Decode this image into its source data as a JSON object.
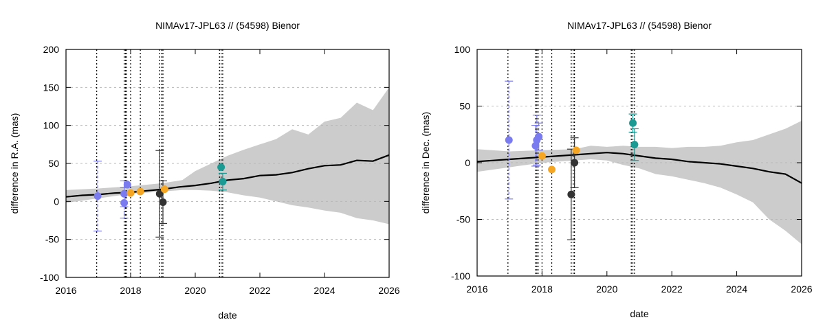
{
  "chart_data": [
    {
      "type": "line",
      "title": "NIMAv17-JPL63 // (54598) Bienor",
      "xlabel": "date",
      "ylabel": "difference in R.A. (mas)",
      "xlim": [
        2016,
        2026
      ],
      "ylim": [
        -100,
        200
      ],
      "x_ticks": [
        2016,
        2018,
        2020,
        2022,
        2024,
        2026
      ],
      "y_ticks": [
        -100,
        -50,
        0,
        50,
        100,
        150,
        200
      ],
      "x_tick_labels": [
        "2016",
        "2018",
        "2020",
        "2022",
        "2024",
        "2026"
      ],
      "y_tick_labels": [
        "-100",
        "-50",
        "0",
        "50",
        "100",
        "150",
        "200"
      ],
      "grid": true,
      "colors": {
        "band": "#cccccc",
        "line": "#000000",
        "blue": "#7b7bf0",
        "orange": "#f5a623",
        "black": "#333333",
        "teal": "#1a9a93"
      },
      "uncertainty_band": {
        "x": [
          2016,
          2017,
          2018,
          2019,
          2019.6,
          2020,
          2020.5,
          2021,
          2021.5,
          2022,
          2022.5,
          2023,
          2023.5,
          2024,
          2024.5,
          2025,
          2025.5,
          2026
        ],
        "upper": [
          15,
          17,
          20,
          24,
          28,
          40,
          50,
          60,
          68,
          75,
          82,
          95,
          88,
          105,
          110,
          130,
          120,
          150
        ],
        "lower": [
          -2,
          4,
          10,
          13,
          15,
          15,
          14,
          12,
          8,
          5,
          0,
          -5,
          -8,
          -12,
          -15,
          -22,
          -25,
          -30
        ]
      },
      "mean_line": {
        "x": [
          2016,
          2016.5,
          2017,
          2017.5,
          2018,
          2018.5,
          2019,
          2019.5,
          2020,
          2020.5,
          2021,
          2021.5,
          2022,
          2022.5,
          2023,
          2023.5,
          2024,
          2024.5,
          2025,
          2025.5,
          2026
        ],
        "y": [
          6,
          8,
          9,
          11,
          12,
          14,
          16,
          19,
          21,
          24,
          28,
          30,
          34,
          35,
          38,
          43,
          47,
          48,
          54,
          53,
          61
        ]
      },
      "vertical_lines": [
        2016.95,
        2017.8,
        2017.84,
        2017.88,
        2018.0,
        2018.3,
        2018.9,
        2018.96,
        2019.0,
        2020.75,
        2020.8,
        2020.85
      ],
      "points": [
        {
          "x": 2016.98,
          "y": 7,
          "err": 46,
          "color": "blue",
          "dashed": true
        },
        {
          "x": 2017.8,
          "y": 10,
          "err": 17,
          "color": "blue",
          "dashed": true
        },
        {
          "x": 2017.8,
          "y": -2,
          "err": 20,
          "color": "blue",
          "dashed": true
        },
        {
          "x": 2017.9,
          "y": 22,
          "err": 0,
          "color": "blue",
          "dashed": true
        },
        {
          "x": 2018.0,
          "y": 11,
          "err": 0,
          "color": "orange",
          "dashed": false
        },
        {
          "x": 2018.3,
          "y": 13,
          "err": 0,
          "color": "orange",
          "dashed": false
        },
        {
          "x": 2018.9,
          "y": 10,
          "err": 57,
          "color": "black",
          "dashed": false
        },
        {
          "x": 2019.0,
          "y": -1,
          "err": 28,
          "color": "black",
          "dashed": false
        },
        {
          "x": 2019.05,
          "y": 16,
          "err": 0,
          "color": "orange",
          "dashed": false
        },
        {
          "x": 2020.8,
          "y": 45,
          "err": 0,
          "color": "teal",
          "dashed": false
        },
        {
          "x": 2020.85,
          "y": 26,
          "err": 11,
          "color": "teal",
          "dashed": false
        }
      ]
    },
    {
      "type": "line",
      "title": "NIMAv17-JPL63 // (54598) Bienor",
      "xlabel": "date",
      "ylabel": "difference in Dec. (mas)",
      "xlim": [
        2016,
        2026
      ],
      "ylim": [
        -100,
        100
      ],
      "x_ticks": [
        2016,
        2018,
        2020,
        2022,
        2024,
        2026
      ],
      "y_ticks": [
        -100,
        -50,
        0,
        50,
        100
      ],
      "x_tick_labels": [
        "2016",
        "2018",
        "2020",
        "2022",
        "2024",
        "2026"
      ],
      "y_tick_labels": [
        "-100",
        "-50",
        "0",
        "50",
        "100"
      ],
      "grid": true,
      "colors": {
        "band": "#cccccc",
        "line": "#000000",
        "blue": "#7b7bf0",
        "orange": "#f5a623",
        "black": "#333333",
        "teal": "#1a9a93"
      },
      "uncertainty_band": {
        "x": [
          2016,
          2017,
          2018,
          2019,
          2019.5,
          2020,
          2020.5,
          2021,
          2021.5,
          2022,
          2022.5,
          2023,
          2023.5,
          2024,
          2024.5,
          2025,
          2025.5,
          2026
        ],
        "upper": [
          12,
          10,
          11,
          12,
          15,
          14,
          15,
          14,
          14,
          13,
          14,
          14,
          15,
          18,
          20,
          25,
          30,
          37
        ],
        "lower": [
          -8,
          -4,
          0,
          2,
          3,
          2,
          -2,
          -5,
          -10,
          -12,
          -15,
          -18,
          -22,
          -28,
          -35,
          -50,
          -60,
          -72
        ]
      },
      "mean_line": {
        "x": [
          2016,
          2016.5,
          2017,
          2017.5,
          2018,
          2018.5,
          2019,
          2019.5,
          2020,
          2020.5,
          2021,
          2021.5,
          2022,
          2022.5,
          2023,
          2023.5,
          2024,
          2024.5,
          2025,
          2025.5,
          2026
        ],
        "y": [
          1,
          2,
          3,
          4,
          5,
          6,
          7,
          8,
          9,
          8,
          6,
          4,
          3,
          1,
          0,
          -1,
          -3,
          -5,
          -8,
          -10,
          -18
        ]
      },
      "vertical_lines": [
        2016.95,
        2017.8,
        2017.84,
        2017.88,
        2018.0,
        2018.3,
        2018.9,
        2018.96,
        2019.0,
        2020.75,
        2020.8,
        2020.85
      ],
      "points": [
        {
          "x": 2016.98,
          "y": 20,
          "err": 52,
          "color": "blue",
          "dashed": true
        },
        {
          "x": 2017.8,
          "y": 15,
          "err": 18,
          "color": "blue",
          "dashed": true
        },
        {
          "x": 2017.84,
          "y": 20,
          "err": 22,
          "color": "blue",
          "dashed": true
        },
        {
          "x": 2017.9,
          "y": 23,
          "err": 12,
          "color": "blue",
          "dashed": true
        },
        {
          "x": 2018.0,
          "y": 6,
          "err": 0,
          "color": "orange",
          "dashed": false
        },
        {
          "x": 2018.3,
          "y": -6,
          "err": 0,
          "color": "orange",
          "dashed": false
        },
        {
          "x": 2018.9,
          "y": -28,
          "err": 40,
          "color": "black",
          "dashed": false
        },
        {
          "x": 2019.0,
          "y": 0,
          "err": 22,
          "color": "black",
          "dashed": false
        },
        {
          "x": 2019.05,
          "y": 11,
          "err": 0,
          "color": "orange",
          "dashed": false
        },
        {
          "x": 2020.8,
          "y": 35,
          "err": 8,
          "color": "teal",
          "dashed": false
        },
        {
          "x": 2020.85,
          "y": 16,
          "err": 14,
          "color": "teal",
          "dashed": false
        }
      ]
    }
  ]
}
